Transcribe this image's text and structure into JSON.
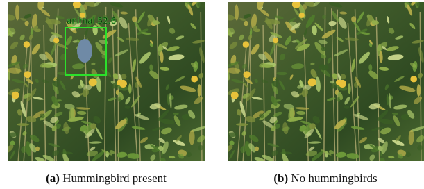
{
  "figure": {
    "panels": [
      {
        "label": "(a)",
        "caption": "Hummingbird present",
        "detection": "animal 52.6"
      },
      {
        "label": "(b)",
        "caption": "No hummingbirds"
      }
    ]
  }
}
